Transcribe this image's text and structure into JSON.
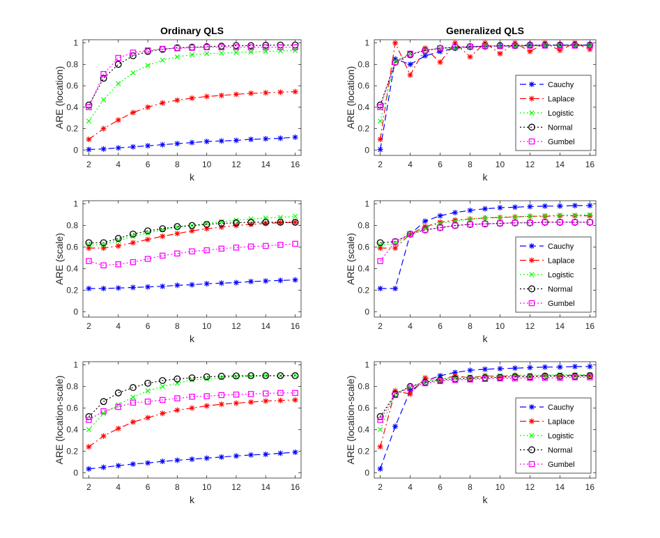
{
  "chart_data": [
    {
      "type": "line",
      "title": "Ordinary QLS",
      "xlabel": "k",
      "ylabel": "ARE (location)",
      "xlim": [
        1.6,
        16.4
      ],
      "ylim": [
        -0.05,
        1.03
      ],
      "xticks": [
        "2",
        "4",
        "6",
        "8",
        "10",
        "12",
        "14",
        "16"
      ],
      "yticks": [
        "0",
        "0.2",
        "0.4",
        "0.6",
        "0.8",
        "1"
      ],
      "x": [
        2,
        3,
        4,
        5,
        6,
        7,
        8,
        9,
        10,
        11,
        12,
        13,
        14,
        15,
        16
      ],
      "legend": null,
      "series": [
        {
          "name": "Cauchy",
          "values": [
            0.005,
            0.01,
            0.02,
            0.03,
            0.04,
            0.05,
            0.06,
            0.07,
            0.08,
            0.085,
            0.09,
            0.1,
            0.105,
            0.11,
            0.12
          ]
        },
        {
          "name": "Laplace",
          "values": [
            0.1,
            0.2,
            0.28,
            0.35,
            0.4,
            0.44,
            0.465,
            0.485,
            0.5,
            0.51,
            0.52,
            0.53,
            0.535,
            0.54,
            0.545
          ]
        },
        {
          "name": "Logistic",
          "values": [
            0.27,
            0.47,
            0.62,
            0.72,
            0.79,
            0.84,
            0.87,
            0.89,
            0.9,
            0.905,
            0.91,
            0.915,
            0.92,
            0.925,
            0.93
          ]
        },
        {
          "name": "Normal",
          "values": [
            0.42,
            0.67,
            0.8,
            0.88,
            0.92,
            0.94,
            0.955,
            0.96,
            0.965,
            0.97,
            0.975,
            0.975,
            0.978,
            0.98,
            0.98
          ]
        },
        {
          "name": "Gumbel",
          "values": [
            0.4,
            0.71,
            0.86,
            0.91,
            0.93,
            0.945,
            0.95,
            0.955,
            0.96,
            0.96,
            0.96,
            0.96,
            0.96,
            0.96,
            0.96
          ]
        }
      ]
    },
    {
      "type": "line",
      "title": "Generalized QLS",
      "xlabel": "k",
      "ylabel": "ARE (location)",
      "xlim": [
        1.6,
        16.4
      ],
      "ylim": [
        -0.05,
        1.03
      ],
      "xticks": [
        "2",
        "4",
        "6",
        "8",
        "10",
        "12",
        "14",
        "16"
      ],
      "yticks": [
        "0",
        "0.2",
        "0.4",
        "0.6",
        "0.8",
        "1"
      ],
      "x": [
        2,
        3,
        4,
        5,
        6,
        7,
        8,
        9,
        10,
        11,
        12,
        13,
        14,
        15,
        16
      ],
      "legend": "lower-right",
      "series": [
        {
          "name": "Cauchy",
          "values": [
            0.005,
            0.85,
            0.8,
            0.88,
            0.92,
            0.95,
            0.96,
            0.97,
            0.97,
            0.975,
            0.975,
            0.98,
            0.98,
            0.98,
            0.98
          ]
        },
        {
          "name": "Laplace",
          "values": [
            0.1,
            1.0,
            0.7,
            0.95,
            0.82,
            1.0,
            0.87,
            1.0,
            0.9,
            1.0,
            0.92,
            1.0,
            0.93,
            1.0,
            0.94
          ]
        },
        {
          "name": "Logistic",
          "values": [
            0.27,
            0.83,
            0.9,
            0.93,
            0.95,
            0.95,
            0.96,
            0.97,
            0.97,
            0.97,
            0.97,
            0.975,
            0.975,
            0.975,
            0.975
          ]
        },
        {
          "name": "Normal",
          "values": [
            0.42,
            0.82,
            0.89,
            0.93,
            0.95,
            0.96,
            0.965,
            0.97,
            0.975,
            0.975,
            0.98,
            0.98,
            0.98,
            0.98,
            0.98
          ]
        },
        {
          "name": "Gumbel",
          "values": [
            0.4,
            0.82,
            0.9,
            0.93,
            0.95,
            0.96,
            0.965,
            0.97,
            0.97,
            0.975,
            0.975,
            0.975,
            0.975,
            0.975,
            0.975
          ]
        }
      ]
    },
    {
      "type": "line",
      "title": "",
      "xlabel": "k",
      "ylabel": "ARE (scale)",
      "xlim": [
        1.6,
        16.4
      ],
      "ylim": [
        -0.05,
        1.03
      ],
      "xticks": [
        "2",
        "4",
        "6",
        "8",
        "10",
        "12",
        "14",
        "16"
      ],
      "yticks": [
        "0",
        "0.2",
        "0.4",
        "0.6",
        "0.8",
        "1"
      ],
      "x": [
        2,
        3,
        4,
        5,
        6,
        7,
        8,
        9,
        10,
        11,
        12,
        13,
        14,
        15,
        16
      ],
      "legend": null,
      "series": [
        {
          "name": "Cauchy",
          "values": [
            0.215,
            0.215,
            0.22,
            0.225,
            0.23,
            0.235,
            0.245,
            0.25,
            0.26,
            0.265,
            0.27,
            0.28,
            0.285,
            0.29,
            0.295
          ]
        },
        {
          "name": "Laplace",
          "values": [
            0.59,
            0.59,
            0.61,
            0.64,
            0.67,
            0.7,
            0.725,
            0.75,
            0.77,
            0.785,
            0.8,
            0.81,
            0.82,
            0.825,
            0.83
          ]
        },
        {
          "name": "Logistic",
          "values": [
            0.62,
            0.62,
            0.66,
            0.7,
            0.73,
            0.76,
            0.785,
            0.8,
            0.82,
            0.835,
            0.85,
            0.86,
            0.87,
            0.875,
            0.885
          ]
        },
        {
          "name": "Normal",
          "values": [
            0.64,
            0.64,
            0.68,
            0.72,
            0.75,
            0.77,
            0.79,
            0.8,
            0.81,
            0.82,
            0.825,
            0.83,
            0.83,
            0.83,
            0.83
          ]
        },
        {
          "name": "Gumbel",
          "values": [
            0.47,
            0.43,
            0.44,
            0.46,
            0.49,
            0.52,
            0.54,
            0.56,
            0.57,
            0.585,
            0.595,
            0.605,
            0.61,
            0.62,
            0.63
          ]
        }
      ]
    },
    {
      "type": "line",
      "title": "",
      "xlabel": "k",
      "ylabel": "ARE (scale)",
      "xlim": [
        1.6,
        16.4
      ],
      "ylim": [
        -0.05,
        1.03
      ],
      "xticks": [
        "2",
        "4",
        "6",
        "8",
        "10",
        "12",
        "14",
        "16"
      ],
      "yticks": [
        "0",
        "0.2",
        "0.4",
        "0.6",
        "0.8",
        "1"
      ],
      "x": [
        2,
        3,
        4,
        5,
        6,
        7,
        8,
        9,
        10,
        11,
        12,
        13,
        14,
        15,
        16
      ],
      "legend": "lower-right",
      "series": [
        {
          "name": "Cauchy",
          "values": [
            0.215,
            0.215,
            0.72,
            0.84,
            0.89,
            0.92,
            0.94,
            0.955,
            0.965,
            0.97,
            0.975,
            0.98,
            0.98,
            0.985,
            0.985
          ]
        },
        {
          "name": "Laplace",
          "values": [
            0.59,
            0.59,
            0.72,
            0.79,
            0.83,
            0.85,
            0.86,
            0.87,
            0.875,
            0.88,
            0.885,
            0.885,
            0.89,
            0.89,
            0.89
          ]
        },
        {
          "name": "Logistic",
          "values": [
            0.62,
            0.63,
            0.72,
            0.78,
            0.82,
            0.84,
            0.86,
            0.87,
            0.875,
            0.88,
            0.885,
            0.89,
            0.895,
            0.895,
            0.9
          ]
        },
        {
          "name": "Normal",
          "values": [
            0.64,
            0.65,
            0.72,
            0.76,
            0.78,
            0.8,
            0.81,
            0.815,
            0.82,
            0.825,
            0.825,
            0.83,
            0.83,
            0.83,
            0.83
          ]
        },
        {
          "name": "Gumbel",
          "values": [
            0.47,
            0.65,
            0.72,
            0.76,
            0.78,
            0.8,
            0.81,
            0.815,
            0.82,
            0.825,
            0.825,
            0.83,
            0.83,
            0.83,
            0.83
          ]
        }
      ]
    },
    {
      "type": "line",
      "title": "",
      "xlabel": "k",
      "ylabel": "ARE (location-scale)",
      "xlim": [
        1.6,
        16.4
      ],
      "ylim": [
        -0.05,
        1.03
      ],
      "xticks": [
        "2",
        "4",
        "6",
        "8",
        "10",
        "12",
        "14",
        "16"
      ],
      "yticks": [
        "0",
        "0.2",
        "0.4",
        "0.6",
        "0.8",
        "1"
      ],
      "x": [
        2,
        3,
        4,
        5,
        6,
        7,
        8,
        9,
        10,
        11,
        12,
        13,
        14,
        15,
        16
      ],
      "legend": null,
      "series": [
        {
          "name": "Cauchy",
          "values": [
            0.035,
            0.05,
            0.065,
            0.08,
            0.09,
            0.105,
            0.115,
            0.125,
            0.135,
            0.145,
            0.155,
            0.165,
            0.17,
            0.18,
            0.19
          ]
        },
        {
          "name": "Laplace",
          "values": [
            0.24,
            0.34,
            0.41,
            0.47,
            0.51,
            0.55,
            0.58,
            0.6,
            0.62,
            0.635,
            0.645,
            0.655,
            0.665,
            0.67,
            0.675
          ]
        },
        {
          "name": "Logistic",
          "values": [
            0.4,
            0.55,
            0.63,
            0.7,
            0.76,
            0.8,
            0.83,
            0.86,
            0.87,
            0.88,
            0.89,
            0.895,
            0.9,
            0.9,
            0.905
          ]
        },
        {
          "name": "Normal",
          "values": [
            0.52,
            0.66,
            0.74,
            0.79,
            0.83,
            0.855,
            0.87,
            0.88,
            0.89,
            0.895,
            0.898,
            0.9,
            0.9,
            0.9,
            0.9
          ]
        },
        {
          "name": "Gumbel",
          "values": [
            0.49,
            0.57,
            0.61,
            0.65,
            0.66,
            0.675,
            0.69,
            0.705,
            0.71,
            0.72,
            0.725,
            0.73,
            0.735,
            0.74,
            0.74
          ]
        }
      ]
    },
    {
      "type": "line",
      "title": "",
      "xlabel": "k",
      "ylabel": "ARE (location-scale)",
      "xlim": [
        1.6,
        16.4
      ],
      "ylim": [
        -0.05,
        1.03
      ],
      "xticks": [
        "2",
        "4",
        "6",
        "8",
        "10",
        "12",
        "14",
        "16"
      ],
      "yticks": [
        "0",
        "0.2",
        "0.4",
        "0.6",
        "0.8",
        "1"
      ],
      "x": [
        2,
        3,
        4,
        5,
        6,
        7,
        8,
        9,
        10,
        11,
        12,
        13,
        14,
        15,
        16
      ],
      "legend": "lower-right",
      "series": [
        {
          "name": "Cauchy",
          "values": [
            0.035,
            0.43,
            0.76,
            0.85,
            0.9,
            0.93,
            0.95,
            0.96,
            0.965,
            0.97,
            0.975,
            0.98,
            0.98,
            0.985,
            0.985
          ]
        },
        {
          "name": "Laplace",
          "values": [
            0.24,
            0.76,
            0.73,
            0.88,
            0.86,
            0.9,
            0.88,
            0.9,
            0.89,
            0.905,
            0.895,
            0.905,
            0.9,
            0.905,
            0.9
          ]
        },
        {
          "name": "Logistic",
          "values": [
            0.4,
            0.74,
            0.79,
            0.85,
            0.87,
            0.88,
            0.89,
            0.895,
            0.9,
            0.905,
            0.905,
            0.905,
            0.91,
            0.91,
            0.91
          ]
        },
        {
          "name": "Normal",
          "values": [
            0.52,
            0.73,
            0.8,
            0.84,
            0.86,
            0.87,
            0.875,
            0.88,
            0.885,
            0.89,
            0.89,
            0.895,
            0.895,
            0.895,
            0.9
          ]
        },
        {
          "name": "Gumbel",
          "values": [
            0.49,
            0.72,
            0.79,
            0.83,
            0.85,
            0.86,
            0.865,
            0.87,
            0.875,
            0.875,
            0.88,
            0.88,
            0.88,
            0.885,
            0.885
          ]
        }
      ]
    }
  ],
  "series_styles": [
    {
      "name": "Cauchy",
      "color": "#0000ff",
      "dash": "dashed",
      "marker": "asterisk"
    },
    {
      "name": "Laplace",
      "color": "#ff0000",
      "dash": "dashdot",
      "marker": "asterisk"
    },
    {
      "name": "Logistic",
      "color": "#00ff00",
      "dash": "dotted",
      "marker": "cross"
    },
    {
      "name": "Normal",
      "color": "#000000",
      "dash": "dotted",
      "marker": "circle"
    },
    {
      "name": "Gumbel",
      "color": "#ff00ff",
      "dash": "dotted",
      "marker": "square"
    }
  ]
}
